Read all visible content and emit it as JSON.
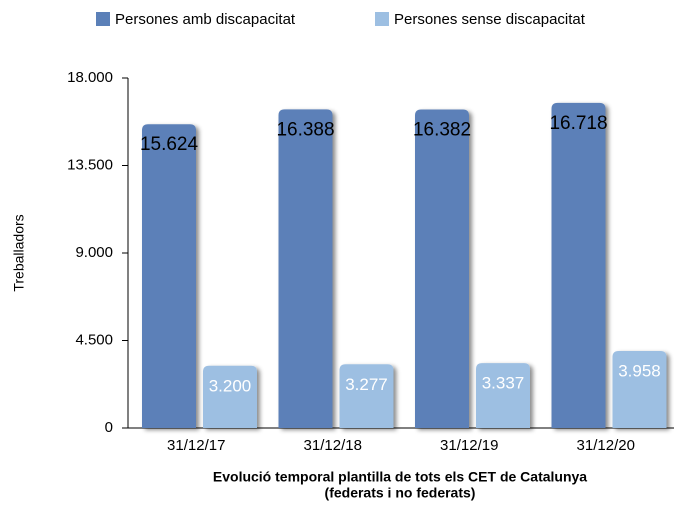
{
  "chart_data": {
    "type": "bar",
    "categories": [
      "31/12/17",
      "31/12/18",
      "31/12/19",
      "31/12/20"
    ],
    "series": [
      {
        "name": "Persones amb discapacitat",
        "color": "#5b80b8",
        "values": [
          15624,
          16388,
          16382,
          16718
        ],
        "value_labels": [
          "15.624",
          "16.388",
          "16.382",
          "16.718"
        ]
      },
      {
        "name": "Persones sense discapacitat",
        "color": "#9dbfe2",
        "values": [
          3200,
          3277,
          3337,
          3958
        ],
        "value_labels": [
          "3.200",
          "3.277",
          "3.337",
          "3.958"
        ]
      }
    ],
    "ylabel": "Treballadors",
    "xlabel": [
      "Evolució temporal plantilla de tots els CET de Catalunya",
      "(federats i no federats)"
    ],
    "ylim": [
      0,
      18000
    ],
    "yticks": [
      0,
      {
        "value": 4500,
        "label": "4.500"
      },
      {
        "value": 9000,
        "label": "9.000"
      },
      {
        "value": 13500,
        "label": "13.500"
      },
      {
        "value": 18000,
        "label": "18.000"
      }
    ],
    "legend": "top"
  }
}
